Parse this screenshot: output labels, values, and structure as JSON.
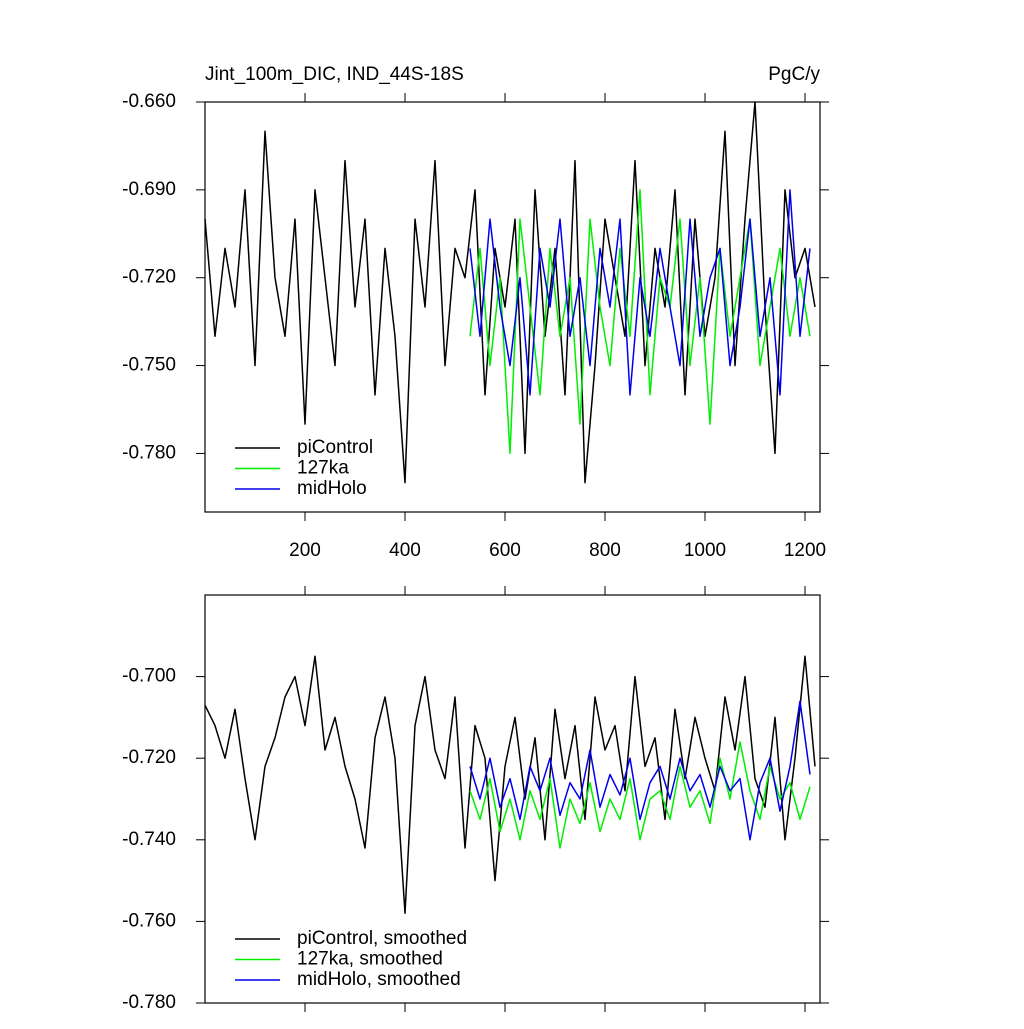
{
  "chart_data": [
    {
      "type": "line",
      "title": "Jint_100m_DIC, IND_44S-18S",
      "units": "PgC/y",
      "xlim": [
        0,
        1230
      ],
      "ylim": [
        -0.8,
        -0.66
      ],
      "xticks": [
        200,
        400,
        600,
        800,
        1000,
        1200
      ],
      "show_xtick_labels": true,
      "yticks": [
        {
          "value": -0.66,
          "label": "-0.660"
        },
        {
          "value": -0.69,
          "label": "-0.690"
        },
        {
          "value": -0.72,
          "label": "-0.720"
        },
        {
          "value": -0.75,
          "label": "-0.750"
        },
        {
          "value": -0.78,
          "label": "-0.780"
        }
      ],
      "legend": "lower left",
      "series": [
        {
          "name": "piControl",
          "color": "#000000",
          "x": [
            0,
            20,
            40,
            60,
            80,
            100,
            120,
            140,
            160,
            180,
            200,
            220,
            240,
            260,
            280,
            300,
            320,
            340,
            360,
            380,
            400,
            420,
            440,
            460,
            480,
            500,
            520,
            540,
            560,
            580,
            600,
            620,
            640,
            660,
            680,
            700,
            720,
            740,
            760,
            780,
            800,
            820,
            840,
            860,
            880,
            900,
            920,
            940,
            960,
            980,
            1000,
            1020,
            1040,
            1060,
            1080,
            1100,
            1120,
            1140,
            1160,
            1180,
            1200,
            1220
          ],
          "values": [
            -0.7,
            -0.74,
            -0.71,
            -0.73,
            -0.69,
            -0.75,
            -0.67,
            -0.72,
            -0.74,
            -0.7,
            -0.77,
            -0.69,
            -0.72,
            -0.75,
            -0.68,
            -0.73,
            -0.7,
            -0.76,
            -0.71,
            -0.74,
            -0.79,
            -0.7,
            -0.73,
            -0.68,
            -0.75,
            -0.71,
            -0.72,
            -0.69,
            -0.76,
            -0.71,
            -0.73,
            -0.7,
            -0.78,
            -0.69,
            -0.74,
            -0.71,
            -0.76,
            -0.68,
            -0.79,
            -0.75,
            -0.7,
            -0.72,
            -0.74,
            -0.68,
            -0.75,
            -0.71,
            -0.73,
            -0.69,
            -0.76,
            -0.7,
            -0.74,
            -0.72,
            -0.67,
            -0.75,
            -0.7,
            -0.66,
            -0.73,
            -0.78,
            -0.69,
            -0.72,
            -0.71,
            -0.73
          ]
        },
        {
          "name": "127ka",
          "color": "#00ee00",
          "x": [
            530,
            550,
            570,
            590,
            610,
            630,
            650,
            670,
            690,
            710,
            730,
            750,
            770,
            790,
            810,
            830,
            850,
            870,
            890,
            910,
            930,
            950,
            970,
            990,
            1010,
            1030,
            1050,
            1070,
            1090,
            1110,
            1130,
            1150,
            1170,
            1190,
            1210
          ],
          "values": [
            -0.74,
            -0.71,
            -0.75,
            -0.72,
            -0.78,
            -0.7,
            -0.73,
            -0.76,
            -0.71,
            -0.74,
            -0.72,
            -0.77,
            -0.7,
            -0.73,
            -0.75,
            -0.71,
            -0.74,
            -0.69,
            -0.76,
            -0.72,
            -0.73,
            -0.7,
            -0.75,
            -0.72,
            -0.77,
            -0.71,
            -0.74,
            -0.72,
            -0.7,
            -0.75,
            -0.73,
            -0.71,
            -0.74,
            -0.72,
            -0.74
          ]
        },
        {
          "name": "midHolo",
          "color": "#0000ee",
          "x": [
            530,
            550,
            570,
            590,
            610,
            630,
            650,
            670,
            690,
            710,
            730,
            750,
            770,
            790,
            810,
            830,
            850,
            870,
            890,
            910,
            930,
            950,
            970,
            990,
            1010,
            1030,
            1050,
            1070,
            1090,
            1110,
            1130,
            1150,
            1170,
            1190,
            1210
          ],
          "values": [
            -0.71,
            -0.74,
            -0.7,
            -0.73,
            -0.75,
            -0.72,
            -0.76,
            -0.71,
            -0.73,
            -0.7,
            -0.74,
            -0.72,
            -0.75,
            -0.71,
            -0.73,
            -0.7,
            -0.76,
            -0.72,
            -0.74,
            -0.71,
            -0.73,
            -0.75,
            -0.7,
            -0.74,
            -0.72,
            -0.71,
            -0.75,
            -0.73,
            -0.7,
            -0.74,
            -0.72,
            -0.76,
            -0.69,
            -0.74,
            -0.71
          ]
        }
      ]
    },
    {
      "type": "line",
      "xlim": [
        0,
        1230
      ],
      "ylim": [
        -0.78,
        -0.68
      ],
      "xticks": [
        200,
        400,
        600,
        800,
        1000,
        1200
      ],
      "show_xtick_labels": false,
      "yticks": [
        {
          "value": -0.7,
          "label": "-0.700"
        },
        {
          "value": -0.72,
          "label": "-0.720"
        },
        {
          "value": -0.74,
          "label": "-0.740"
        },
        {
          "value": -0.76,
          "label": "-0.760"
        },
        {
          "value": -0.78,
          "label": "-0.780"
        }
      ],
      "legend": "lower left",
      "series": [
        {
          "name": "piControl, smoothed",
          "color": "#000000",
          "x": [
            0,
            20,
            40,
            60,
            80,
            100,
            120,
            140,
            160,
            180,
            200,
            220,
            240,
            260,
            280,
            300,
            320,
            340,
            360,
            380,
            400,
            420,
            440,
            460,
            480,
            500,
            520,
            540,
            560,
            580,
            600,
            620,
            640,
            660,
            680,
            700,
            720,
            740,
            760,
            780,
            800,
            820,
            840,
            860,
            880,
            900,
            920,
            940,
            960,
            980,
            1000,
            1020,
            1040,
            1060,
            1080,
            1100,
            1120,
            1140,
            1160,
            1180,
            1200,
            1220
          ],
          "values": [
            -0.707,
            -0.712,
            -0.72,
            -0.708,
            -0.725,
            -0.74,
            -0.722,
            -0.715,
            -0.705,
            -0.7,
            -0.712,
            -0.695,
            -0.718,
            -0.71,
            -0.722,
            -0.73,
            -0.742,
            -0.715,
            -0.705,
            -0.72,
            -0.758,
            -0.712,
            -0.7,
            -0.718,
            -0.725,
            -0.705,
            -0.742,
            -0.712,
            -0.72,
            -0.75,
            -0.722,
            -0.71,
            -0.73,
            -0.715,
            -0.74,
            -0.708,
            -0.725,
            -0.712,
            -0.735,
            -0.705,
            -0.718,
            -0.712,
            -0.728,
            -0.7,
            -0.722,
            -0.715,
            -0.735,
            -0.708,
            -0.725,
            -0.71,
            -0.72,
            -0.728,
            -0.705,
            -0.718,
            -0.7,
            -0.725,
            -0.732,
            -0.71,
            -0.74,
            -0.72,
            -0.695,
            -0.722
          ]
        },
        {
          "name": "127ka, smoothed",
          "color": "#00ee00",
          "x": [
            530,
            550,
            570,
            590,
            610,
            630,
            650,
            670,
            690,
            710,
            730,
            750,
            770,
            790,
            810,
            830,
            850,
            870,
            890,
            910,
            930,
            950,
            970,
            990,
            1010,
            1030,
            1050,
            1070,
            1090,
            1110,
            1130,
            1150,
            1170,
            1190,
            1210
          ],
          "values": [
            -0.728,
            -0.735,
            -0.725,
            -0.738,
            -0.73,
            -0.74,
            -0.728,
            -0.735,
            -0.725,
            -0.742,
            -0.73,
            -0.736,
            -0.726,
            -0.738,
            -0.73,
            -0.735,
            -0.725,
            -0.74,
            -0.73,
            -0.728,
            -0.735,
            -0.722,
            -0.732,
            -0.728,
            -0.736,
            -0.72,
            -0.73,
            -0.716,
            -0.728,
            -0.735,
            -0.722,
            -0.73,
            -0.726,
            -0.735,
            -0.727
          ]
        },
        {
          "name": "midHolo, smoothed",
          "color": "#0000ee",
          "x": [
            530,
            550,
            570,
            590,
            610,
            630,
            650,
            670,
            690,
            710,
            730,
            750,
            770,
            790,
            810,
            830,
            850,
            870,
            890,
            910,
            930,
            950,
            970,
            990,
            1010,
            1030,
            1050,
            1070,
            1090,
            1110,
            1130,
            1150,
            1170,
            1190,
            1210
          ],
          "values": [
            -0.722,
            -0.73,
            -0.72,
            -0.732,
            -0.725,
            -0.735,
            -0.722,
            -0.728,
            -0.72,
            -0.734,
            -0.726,
            -0.73,
            -0.718,
            -0.732,
            -0.724,
            -0.729,
            -0.72,
            -0.735,
            -0.726,
            -0.722,
            -0.73,
            -0.72,
            -0.728,
            -0.724,
            -0.732,
            -0.722,
            -0.728,
            -0.725,
            -0.74,
            -0.726,
            -0.72,
            -0.733,
            -0.722,
            -0.706,
            -0.724
          ]
        }
      ]
    }
  ]
}
